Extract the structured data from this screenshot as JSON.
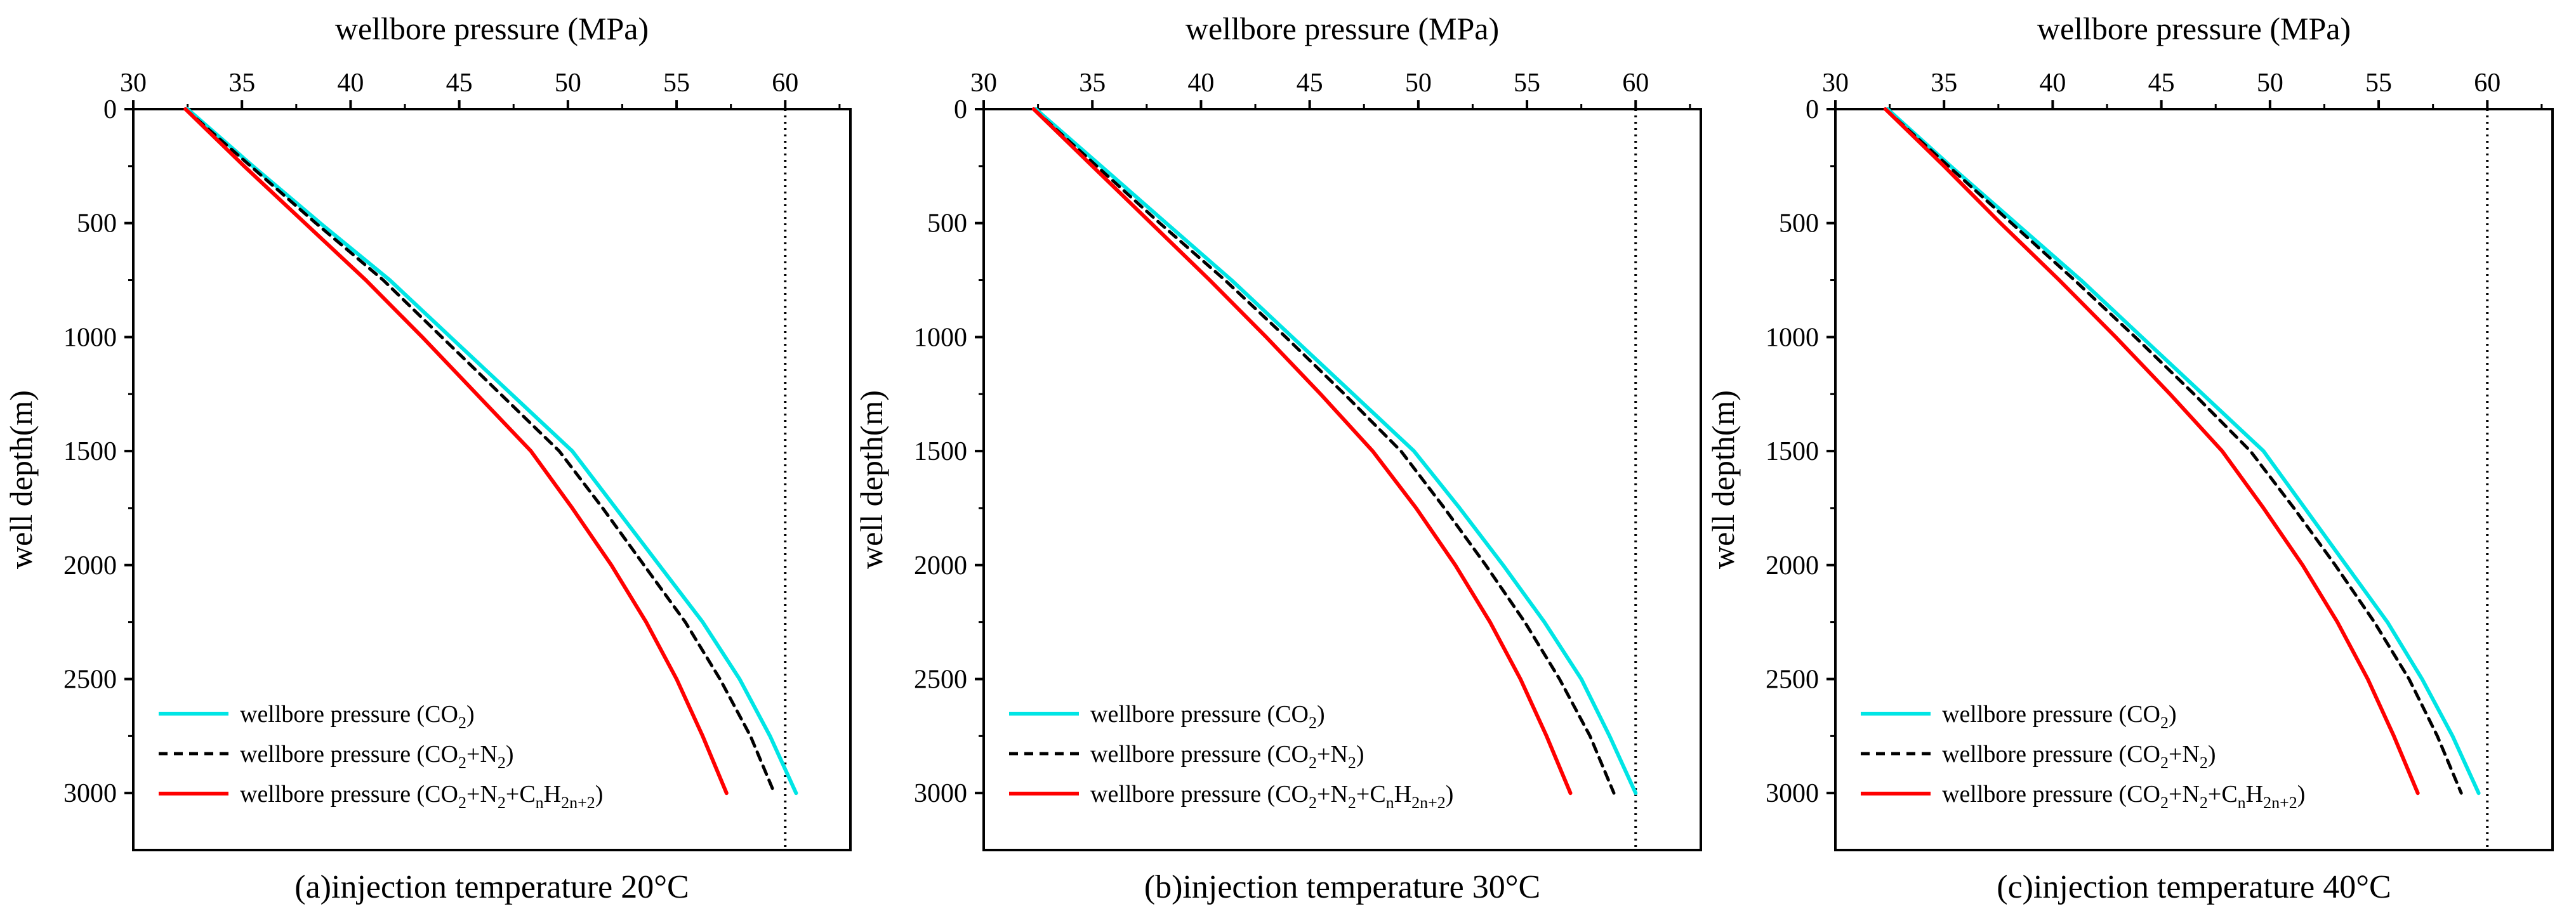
{
  "chart_data": [
    {
      "type": "line",
      "caption": "(a)injection temperature 20°C",
      "xlabel": "wellbore pressure (MPa)",
      "ylabel": "well depth(m)",
      "x_axis_position": "top",
      "y_inverted": true,
      "xlim": [
        30,
        63
      ],
      "ylim": [
        0,
        3250
      ],
      "x_ticks": [
        30,
        35,
        40,
        45,
        50,
        55,
        60
      ],
      "y_ticks": [
        0,
        500,
        1000,
        1500,
        2000,
        2500,
        3000
      ],
      "reference_line": {
        "x": 60,
        "style": "dotted"
      },
      "legend_position": "bottom-left",
      "series": [
        {
          "name": "wellbore pressure (CO2)",
          "color": "#00e5e5",
          "style": "solid",
          "points": [
            [
              32.5,
              0
            ],
            [
              35.5,
              250
            ],
            [
              38.6,
              500
            ],
            [
              41.8,
              750
            ],
            [
              44.6,
              1000
            ],
            [
              47.4,
              1250
            ],
            [
              50.2,
              1500
            ],
            [
              52.2,
              1750
            ],
            [
              54.2,
              2000
            ],
            [
              56.2,
              2250
            ],
            [
              57.9,
              2500
            ],
            [
              59.3,
              2750
            ],
            [
              60.5,
              3000
            ]
          ]
        },
        {
          "name": "wellbore pressure (CO2+N2)",
          "color": "#000000",
          "style": "dashed",
          "points": [
            [
              32.4,
              0
            ],
            [
              35.4,
              250
            ],
            [
              38.4,
              500
            ],
            [
              41.5,
              750
            ],
            [
              44.2,
              1000
            ],
            [
              46.9,
              1250
            ],
            [
              49.6,
              1500
            ],
            [
              51.6,
              1750
            ],
            [
              53.5,
              2000
            ],
            [
              55.4,
              2250
            ],
            [
              57.0,
              2500
            ],
            [
              58.4,
              2750
            ],
            [
              59.5,
              3000
            ]
          ]
        },
        {
          "name": "wellbore pressure (CO2+N2+CnH2n+2)",
          "color": "#ff0000",
          "style": "solid",
          "points": [
            [
              32.4,
              0
            ],
            [
              35.1,
              250
            ],
            [
              37.9,
              500
            ],
            [
              40.7,
              750
            ],
            [
              43.3,
              1000
            ],
            [
              45.8,
              1250
            ],
            [
              48.3,
              1500
            ],
            [
              50.2,
              1750
            ],
            [
              52.0,
              2000
            ],
            [
              53.6,
              2250
            ],
            [
              55.0,
              2500
            ],
            [
              56.2,
              2750
            ],
            [
              57.3,
              3000
            ]
          ]
        }
      ],
      "legend": [
        {
          "pre": "wellbore pressure (CO",
          "parts": [
            [
              "2",
              "sub"
            ],
            [
              ")",
              ""
            ]
          ]
        },
        {
          "pre": "wellbore pressure (CO",
          "parts": [
            [
              "2",
              "sub"
            ],
            [
              "+N",
              ""
            ],
            [
              "2",
              "sub"
            ],
            [
              ")",
              ""
            ]
          ]
        },
        {
          "pre": "wellbore pressure (CO",
          "parts": [
            [
              "2",
              "sub"
            ],
            [
              "+N",
              ""
            ],
            [
              "2",
              "sub"
            ],
            [
              "+C",
              ""
            ],
            [
              "n",
              "sub"
            ],
            [
              "H",
              ""
            ],
            [
              "2n+2",
              "sub"
            ],
            [
              ")",
              ""
            ]
          ]
        }
      ]
    },
    {
      "type": "line",
      "caption": "(b)injection temperature 30°C",
      "xlabel": "wellbore pressure (MPa)",
      "ylabel": "well depth(m)",
      "x_axis_position": "top",
      "y_inverted": true,
      "xlim": [
        30,
        63
      ],
      "ylim": [
        0,
        3250
      ],
      "x_ticks": [
        30,
        35,
        40,
        45,
        50,
        55,
        60
      ],
      "y_ticks": [
        0,
        500,
        1000,
        1500,
        2000,
        2500,
        3000
      ],
      "reference_line": {
        "x": 60,
        "style": "dotted"
      },
      "legend_position": "bottom-left",
      "series": [
        {
          "name": "wellbore pressure (CO2)",
          "color": "#00e5e5",
          "style": "solid",
          "points": [
            [
              32.4,
              0
            ],
            [
              35.4,
              250
            ],
            [
              38.4,
              500
            ],
            [
              41.4,
              750
            ],
            [
              44.2,
              1000
            ],
            [
              47.0,
              1250
            ],
            [
              49.8,
              1500
            ],
            [
              51.9,
              1750
            ],
            [
              53.9,
              2000
            ],
            [
              55.8,
              2250
            ],
            [
              57.5,
              2500
            ],
            [
              58.8,
              2750
            ],
            [
              60.0,
              3000
            ]
          ]
        },
        {
          "name": "wellbore pressure (CO2+N2)",
          "color": "#000000",
          "style": "dashed",
          "points": [
            [
              32.3,
              0
            ],
            [
              35.2,
              250
            ],
            [
              38.1,
              500
            ],
            [
              41.1,
              750
            ],
            [
              43.9,
              1000
            ],
            [
              46.6,
              1250
            ],
            [
              49.2,
              1500
            ],
            [
              51.2,
              1750
            ],
            [
              53.1,
              2000
            ],
            [
              54.9,
              2250
            ],
            [
              56.5,
              2500
            ],
            [
              57.9,
              2750
            ],
            [
              59.0,
              3000
            ]
          ]
        },
        {
          "name": "wellbore pressure (CO2+N2+CnH2n+2)",
          "color": "#ff0000",
          "style": "solid",
          "points": [
            [
              32.3,
              0
            ],
            [
              35.0,
              250
            ],
            [
              37.7,
              500
            ],
            [
              40.4,
              750
            ],
            [
              43.0,
              1000
            ],
            [
              45.5,
              1250
            ],
            [
              47.9,
              1500
            ],
            [
              49.9,
              1750
            ],
            [
              51.7,
              2000
            ],
            [
              53.3,
              2250
            ],
            [
              54.7,
              2500
            ],
            [
              55.9,
              2750
            ],
            [
              57.0,
              3000
            ]
          ]
        }
      ],
      "legend": [
        {
          "pre": "wellbore pressure (CO",
          "parts": [
            [
              "2",
              "sub"
            ],
            [
              ")",
              ""
            ]
          ]
        },
        {
          "pre": "wellbore pressure (CO",
          "parts": [
            [
              "2",
              "sub"
            ],
            [
              "+N",
              ""
            ],
            [
              "2",
              "sub"
            ],
            [
              ")",
              ""
            ]
          ]
        },
        {
          "pre": "wellbore pressure (CO",
          "parts": [
            [
              "2",
              "sub"
            ],
            [
              "+N",
              ""
            ],
            [
              "2",
              "sub"
            ],
            [
              "+C",
              ""
            ],
            [
              "n",
              "sub"
            ],
            [
              "H",
              ""
            ],
            [
              "2n+2",
              "sub"
            ],
            [
              ")",
              ""
            ]
          ]
        }
      ]
    },
    {
      "type": "line",
      "caption": "(c)injection temperature 40°C",
      "xlabel": "wellbore pressure (MPa)",
      "ylabel": "well depth(m)",
      "x_axis_position": "top",
      "y_inverted": true,
      "xlim": [
        30,
        63
      ],
      "ylim": [
        0,
        3250
      ],
      "x_ticks": [
        30,
        35,
        40,
        45,
        50,
        55,
        60
      ],
      "y_ticks": [
        0,
        500,
        1000,
        1500,
        2000,
        2500,
        3000
      ],
      "reference_line": {
        "x": 60,
        "style": "dotted"
      },
      "legend_position": "bottom-left",
      "series": [
        {
          "name": "wellbore pressure (CO2)",
          "color": "#00e5e5",
          "style": "solid",
          "points": [
            [
              32.4,
              0
            ],
            [
              35.3,
              250
            ],
            [
              38.3,
              500
            ],
            [
              41.3,
              750
            ],
            [
              44.1,
              1000
            ],
            [
              46.9,
              1250
            ],
            [
              49.7,
              1500
            ],
            [
              51.6,
              1750
            ],
            [
              53.5,
              2000
            ],
            [
              55.4,
              2250
            ],
            [
              57.0,
              2500
            ],
            [
              58.4,
              2750
            ],
            [
              59.6,
              3000
            ]
          ]
        },
        {
          "name": "wellbore pressure (CO2+N2)",
          "color": "#000000",
          "style": "dashed",
          "points": [
            [
              32.3,
              0
            ],
            [
              35.2,
              250
            ],
            [
              38.1,
              500
            ],
            [
              41.0,
              750
            ],
            [
              43.8,
              1000
            ],
            [
              46.5,
              1250
            ],
            [
              49.1,
              1500
            ],
            [
              51.1,
              1750
            ],
            [
              53.0,
              2000
            ],
            [
              54.8,
              2250
            ],
            [
              56.4,
              2500
            ],
            [
              57.7,
              2750
            ],
            [
              58.8,
              3000
            ]
          ]
        },
        {
          "name": "wellbore pressure (CO2+N2+CnH2n+2)",
          "color": "#ff0000",
          "style": "solid",
          "points": [
            [
              32.3,
              0
            ],
            [
              35.0,
              250
            ],
            [
              37.6,
              500
            ],
            [
              40.3,
              750
            ],
            [
              42.9,
              1000
            ],
            [
              45.4,
              1250
            ],
            [
              47.8,
              1500
            ],
            [
              49.7,
              1750
            ],
            [
              51.5,
              2000
            ],
            [
              53.1,
              2250
            ],
            [
              54.5,
              2500
            ],
            [
              55.7,
              2750
            ],
            [
              56.8,
              3000
            ]
          ]
        }
      ],
      "legend": [
        {
          "pre": "wellbore pressure (CO",
          "parts": [
            [
              "2",
              "sub"
            ],
            [
              ")",
              ""
            ]
          ]
        },
        {
          "pre": "wellbore pressure (CO",
          "parts": [
            [
              "2",
              "sub"
            ],
            [
              "+N",
              ""
            ],
            [
              "2",
              "sub"
            ],
            [
              ")",
              ""
            ]
          ]
        },
        {
          "pre": "wellbore pressure (CO",
          "parts": [
            [
              "2",
              "sub"
            ],
            [
              "+N",
              ""
            ],
            [
              "2",
              "sub"
            ],
            [
              "+C",
              ""
            ],
            [
              "n",
              "sub"
            ],
            [
              "H",
              ""
            ],
            [
              "2n+2",
              "sub"
            ],
            [
              ")",
              ""
            ]
          ]
        }
      ]
    }
  ]
}
